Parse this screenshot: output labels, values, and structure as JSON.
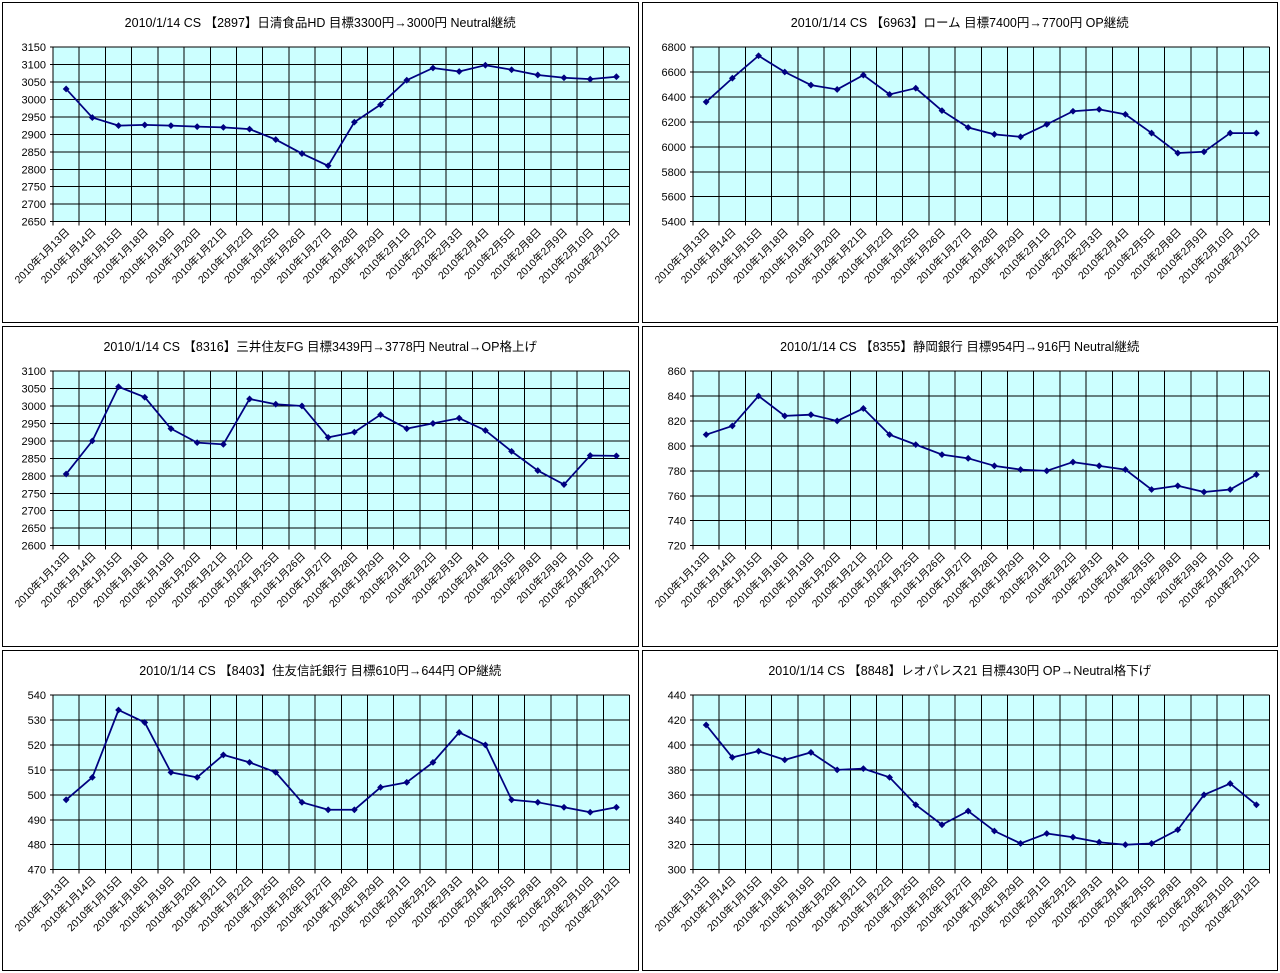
{
  "style": {
    "plot_bg": "#ccffff",
    "grid_color": "#000000",
    "axis_color": "#000000",
    "line_color": "#000080",
    "marker": "diamond",
    "panel_bg": "#ffffff"
  },
  "chart_data": [
    {
      "type": "line",
      "title": "2010/1/14 CS 【2897】日清食品HD 目標3300円→3000円 Neutral継続",
      "xlabel": "",
      "ylabel": "",
      "ylim": [
        2650,
        3150
      ],
      "ystep": 50,
      "grid": true,
      "legend": "none",
      "categories": [
        "2010年1月13日",
        "2010年1月14日",
        "2010年1月15日",
        "2010年1月18日",
        "2010年1月19日",
        "2010年1月20日",
        "2010年1月21日",
        "2010年1月22日",
        "2010年1月25日",
        "2010年1月26日",
        "2010年1月27日",
        "2010年1月28日",
        "2010年1月29日",
        "2010年2月1日",
        "2010年2月2日",
        "2010年2月3日",
        "2010年2月4日",
        "2010年2月5日",
        "2010年2月8日",
        "2010年2月9日",
        "2010年2月10日",
        "2010年2月12日"
      ],
      "values": [
        3030,
        2948,
        2925,
        2927,
        2925,
        2922,
        2920,
        2915,
        2885,
        2845,
        2810,
        2935,
        2985,
        3055,
        3090,
        3080,
        3098,
        3085,
        3070,
        3062,
        3058,
        3065
      ]
    },
    {
      "type": "line",
      "title": "2010/1/14 CS 【6963】ローム 目標7400円→7700円 OP継続",
      "xlabel": "",
      "ylabel": "",
      "ylim": [
        5400,
        6800
      ],
      "ystep": 200,
      "grid": true,
      "legend": "none",
      "categories": [
        "2010年1月13日",
        "2010年1月14日",
        "2010年1月15日",
        "2010年1月18日",
        "2010年1月19日",
        "2010年1月20日",
        "2010年1月21日",
        "2010年1月22日",
        "2010年1月25日",
        "2010年1月26日",
        "2010年1月27日",
        "2010年1月28日",
        "2010年1月29日",
        "2010年2月1日",
        "2010年2月2日",
        "2010年2月3日",
        "2010年2月4日",
        "2010年2月5日",
        "2010年2月8日",
        "2010年2月9日",
        "2010年2月10日",
        "2010年2月12日"
      ],
      "values": [
        6360,
        6550,
        6730,
        6600,
        6495,
        6460,
        6575,
        6420,
        6470,
        6290,
        6155,
        6100,
        6080,
        6180,
        6285,
        6300,
        6260,
        6110,
        5950,
        5960,
        6110,
        6110
      ]
    },
    {
      "type": "line",
      "title": "2010/1/14 CS 【8316】三井住友FG 目標3439円→3778円 Neutral→OP格上げ",
      "xlabel": "",
      "ylabel": "",
      "ylim": [
        2600,
        3100
      ],
      "ystep": 50,
      "grid": true,
      "legend": "none",
      "categories": [
        "2010年1月13日",
        "2010年1月14日",
        "2010年1月15日",
        "2010年1月18日",
        "2010年1月19日",
        "2010年1月20日",
        "2010年1月21日",
        "2010年1月22日",
        "2010年1月25日",
        "2010年1月26日",
        "2010年1月27日",
        "2010年1月28日",
        "2010年1月29日",
        "2010年2月1日",
        "2010年2月2日",
        "2010年2月3日",
        "2010年2月4日",
        "2010年2月5日",
        "2010年2月8日",
        "2010年2月9日",
        "2010年2月10日",
        "2010年2月12日"
      ],
      "values": [
        2805,
        2900,
        3055,
        3025,
        2935,
        2895,
        2890,
        3020,
        3005,
        3000,
        2910,
        2925,
        2975,
        2935,
        2950,
        2965,
        2930,
        2870,
        2815,
        2775,
        2858,
        2857
      ]
    },
    {
      "type": "line",
      "title": "2010/1/14 CS 【8355】静岡銀行 目標954円→916円 Neutral継続",
      "xlabel": "",
      "ylabel": "",
      "ylim": [
        720,
        860
      ],
      "ystep": 20,
      "grid": true,
      "legend": "none",
      "categories": [
        "2010年1月13日",
        "2010年1月14日",
        "2010年1月15日",
        "2010年1月18日",
        "2010年1月19日",
        "2010年1月20日",
        "2010年1月21日",
        "2010年1月22日",
        "2010年1月25日",
        "2010年1月26日",
        "2010年1月27日",
        "2010年1月28日",
        "2010年1月29日",
        "2010年2月1日",
        "2010年2月2日",
        "2010年2月3日",
        "2010年2月4日",
        "2010年2月5日",
        "2010年2月8日",
        "2010年2月9日",
        "2010年2月10日",
        "2010年2月12日"
      ],
      "values": [
        809,
        816,
        840,
        824,
        825,
        820,
        830,
        809,
        801,
        793,
        790,
        784,
        781,
        780,
        787,
        784,
        781,
        765,
        768,
        763,
        765,
        777
      ]
    },
    {
      "type": "line",
      "title": "2010/1/14 CS 【8403】住友信託銀行 目標610円→644円 OP継続",
      "xlabel": "",
      "ylabel": "",
      "ylim": [
        470,
        540
      ],
      "ystep": 10,
      "grid": true,
      "legend": "none",
      "categories": [
        "2010年1月13日",
        "2010年1月14日",
        "2010年1月15日",
        "2010年1月18日",
        "2010年1月19日",
        "2010年1月20日",
        "2010年1月21日",
        "2010年1月22日",
        "2010年1月25日",
        "2010年1月26日",
        "2010年1月27日",
        "2010年1月28日",
        "2010年1月29日",
        "2010年2月1日",
        "2010年2月2日",
        "2010年2月3日",
        "2010年2月4日",
        "2010年2月5日",
        "2010年2月8日",
        "2010年2月9日",
        "2010年2月10日",
        "2010年2月12日"
      ],
      "values": [
        498,
        507,
        534,
        529,
        509,
        507,
        516,
        513,
        509,
        497,
        494,
        494,
        503,
        505,
        513,
        525,
        520,
        498,
        497,
        495,
        493,
        495
      ]
    },
    {
      "type": "line",
      "title": "2010/1/14 CS 【8848】レオパレス21 目標430円 OP→Neutral格下げ",
      "xlabel": "",
      "ylabel": "",
      "ylim": [
        300,
        440
      ],
      "ystep": 20,
      "grid": true,
      "legend": "none",
      "categories": [
        "2010年1月13日",
        "2010年1月14日",
        "2010年1月15日",
        "2010年1月18日",
        "2010年1月19日",
        "2010年1月20日",
        "2010年1月21日",
        "2010年1月22日",
        "2010年1月25日",
        "2010年1月26日",
        "2010年1月27日",
        "2010年1月28日",
        "2010年1月29日",
        "2010年2月1日",
        "2010年2月2日",
        "2010年2月3日",
        "2010年2月4日",
        "2010年2月5日",
        "2010年2月8日",
        "2010年2月9日",
        "2010年2月10日",
        "2010年2月12日"
      ],
      "values": [
        416,
        390,
        395,
        388,
        394,
        380,
        381,
        374,
        352,
        336,
        347,
        331,
        321,
        329,
        326,
        322,
        320,
        321,
        332,
        360,
        369,
        352
      ]
    }
  ]
}
